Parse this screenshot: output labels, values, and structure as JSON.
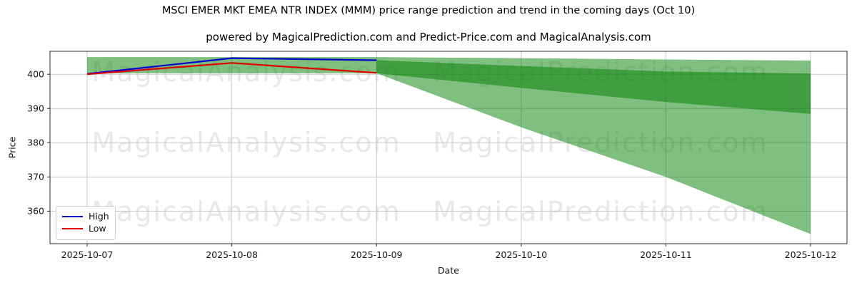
{
  "header": {
    "title": "MSCI EMER MKT EMEA NTR INDEX (MMM) price range prediction and trend in the coming days (Oct 10)",
    "subtitle": "powered by MagicalPrediction.com and Predict-Price.com and MagicalAnalysis.com"
  },
  "watermarks": {
    "left_text": "MagicalAnalysis.com",
    "right_text": "MagicalPrediction.com"
  },
  "chart_data": {
    "type": "line",
    "title": "MSCI EMER MKT EMEA NTR INDEX (MMM) price range prediction and trend in the coming days (Oct 10)",
    "subtitle": "powered by MagicalPrediction.com and Predict-Price.com and MagicalAnalysis.com",
    "xlabel": "Date",
    "ylabel": "Price",
    "x_tick_labels": [
      "2025-10-07",
      "2025-10-08",
      "2025-10-09",
      "2025-10-10",
      "2025-10-11",
      "2025-10-12"
    ],
    "y_ticks": [
      360,
      370,
      380,
      390,
      400
    ],
    "ylim": [
      350.5,
      406.7
    ],
    "grid": true,
    "legend_position": "lower left",
    "axis_colors": {
      "spine": "#2a2a2a",
      "grid": "#c9c9c9",
      "tick_text": "#151515"
    },
    "series": [
      {
        "name": "High",
        "color": "#0000cd",
        "x": [
          0,
          1,
          2
        ],
        "values": [
          400.1,
          404.7,
          404.1
        ]
      },
      {
        "name": "Low",
        "color": "#e00000",
        "x": [
          0,
          1,
          2
        ],
        "values": [
          400.0,
          403.3,
          400.4
        ]
      }
    ],
    "bands": [
      {
        "name": "historical-range",
        "color": "#008000",
        "opacity": 0.5,
        "x": [
          0,
          1,
          2
        ],
        "upper": [
          405.0,
          405.0,
          405.0
        ],
        "lower": [
          400.3,
          400.3,
          400.3
        ]
      },
      {
        "name": "prediction-outer-range",
        "color": "#008000",
        "opacity": 0.5,
        "x": [
          2,
          3,
          4,
          5
        ],
        "upper": [
          405.0,
          404.7,
          404.3,
          404.0
        ],
        "lower": [
          400.3,
          384.5,
          370.0,
          353.3
        ]
      },
      {
        "name": "prediction-inner-range",
        "color": "#008000",
        "opacity": 0.5,
        "x": [
          2,
          3,
          4,
          5
        ],
        "upper": [
          404.1,
          402.4,
          400.8,
          400.2
        ],
        "lower": [
          400.3,
          396.0,
          391.9,
          388.4
        ]
      }
    ]
  }
}
